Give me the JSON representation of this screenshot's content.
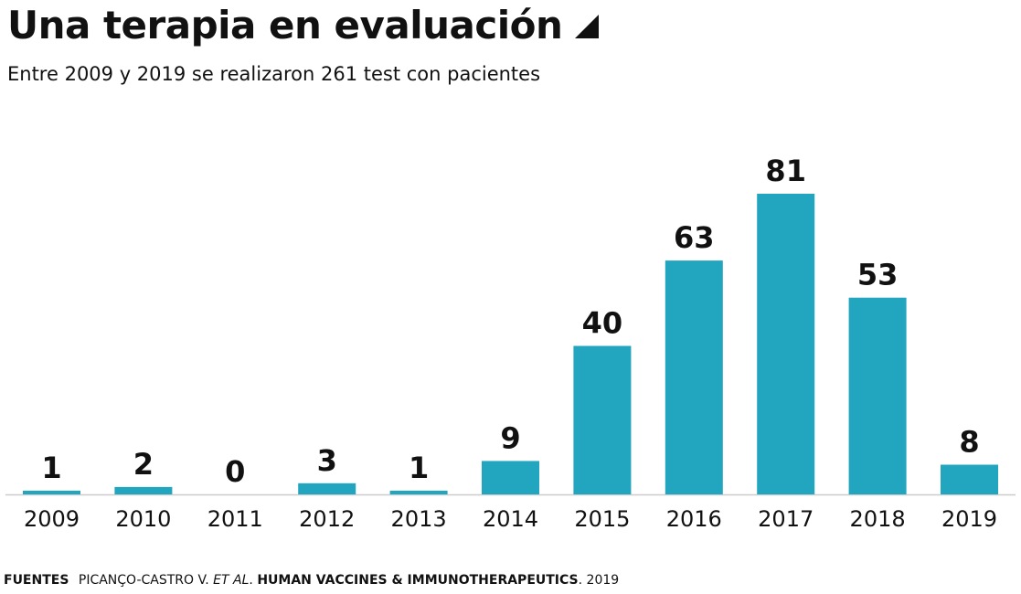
{
  "title": "Una terapia en evaluación",
  "subtitle": "Entre 2009 y 2019 se realizaron 261 test con pacientes",
  "source": {
    "label": "FUENTES",
    "author": "PICANÇO-CASTRO V.",
    "author_etal": "ET AL",
    "journal": "HUMAN VACCINES & IMMUNOTHERAPEUTICS",
    "year": "2019"
  },
  "colors": {
    "bar": "#22a5bf",
    "axis": "#cccccc",
    "text": "#111111"
  },
  "chart_data": {
    "type": "bar",
    "title": "Una terapia en evaluación",
    "subtitle": "Entre 2009 y 2019 se realizaron 261 test con pacientes",
    "categories": [
      "2009",
      "2010",
      "2011",
      "2012",
      "2013",
      "2014",
      "2015",
      "2016",
      "2017",
      "2018",
      "2019"
    ],
    "values": [
      1,
      2,
      0,
      3,
      1,
      9,
      40,
      63,
      81,
      53,
      8
    ],
    "xlabel": "",
    "ylabel": "",
    "ylim": [
      0,
      81
    ],
    "grid": false,
    "legend": "none",
    "data_labels": true
  }
}
